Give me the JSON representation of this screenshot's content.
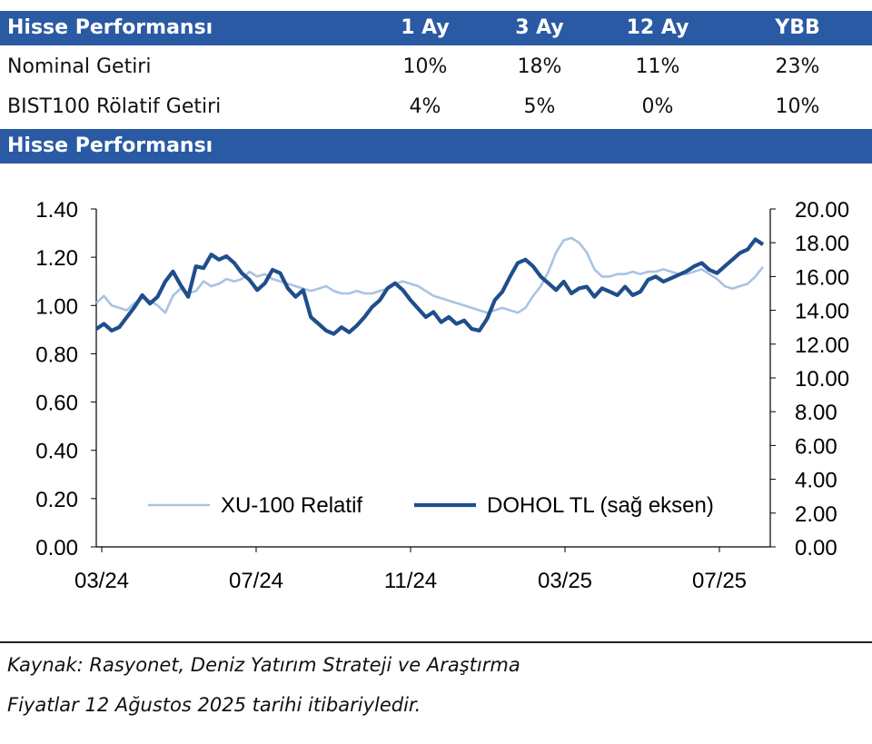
{
  "table": {
    "title": "Hisse Performansı",
    "columns": [
      "1 Ay",
      "3 Ay",
      "12 Ay",
      "YBB"
    ],
    "rows": [
      {
        "label": "Nominal Getiri",
        "values": [
          "10%",
          "18%",
          "11%",
          "23%"
        ]
      },
      {
        "label": "BIST100 Rölatif Getiri",
        "values": [
          "4%",
          "5%",
          "0%",
          "10%"
        ]
      }
    ]
  },
  "chart_section_title": "Hisse Performansı",
  "chart_data": {
    "type": "line",
    "x_ticks": [
      "03/24",
      "07/24",
      "11/24",
      "03/25",
      "07/25"
    ],
    "y_left": {
      "range": [
        0,
        1.4
      ],
      "ticks": [
        "0.00",
        "0.20",
        "0.40",
        "0.60",
        "0.80",
        "1.00",
        "1.20",
        "1.40"
      ]
    },
    "y_right": {
      "range": [
        0,
        20
      ],
      "ticks": [
        "0.00",
        "2.00",
        "4.00",
        "6.00",
        "8.00",
        "10.00",
        "12.00",
        "14.00",
        "16.00",
        "18.00",
        "20.00"
      ]
    },
    "legend_position": "bottom",
    "x_range_months": [
      0,
      17.4
    ],
    "series": [
      {
        "name": "XU-100 Relatif",
        "axis": "left",
        "color": "#a9c3e2",
        "x": [
          0,
          0.2,
          0.4,
          0.6,
          0.8,
          1.0,
          1.2,
          1.4,
          1.6,
          1.8,
          2.0,
          2.2,
          2.4,
          2.6,
          2.8,
          3.0,
          3.2,
          3.4,
          3.6,
          3.8,
          4.0,
          4.2,
          4.4,
          4.6,
          4.8,
          5.0,
          5.2,
          5.4,
          5.6,
          5.8,
          6.0,
          6.2,
          6.4,
          6.6,
          6.8,
          7.0,
          7.2,
          7.4,
          7.6,
          7.8,
          8.0,
          8.2,
          8.4,
          8.6,
          8.8,
          9.0,
          9.2,
          9.4,
          9.6,
          9.8,
          10.0,
          10.2,
          10.4,
          10.6,
          10.8,
          11.0,
          11.2,
          11.4,
          11.6,
          11.8,
          12.0,
          12.2,
          12.4,
          12.6,
          12.8,
          13.0,
          13.2,
          13.4,
          13.6,
          13.8,
          14.0,
          14.2,
          14.4,
          14.6,
          14.8,
          15.0,
          15.2,
          15.4,
          15.6,
          15.8,
          16.0,
          16.2,
          16.4,
          16.6,
          16.8,
          17.0,
          17.2,
          17.4
        ],
        "values": [
          1.01,
          1.04,
          1.0,
          0.99,
          0.98,
          1.01,
          1.03,
          1.02,
          1.0,
          0.97,
          1.04,
          1.07,
          1.05,
          1.06,
          1.1,
          1.08,
          1.09,
          1.11,
          1.1,
          1.11,
          1.14,
          1.12,
          1.13,
          1.11,
          1.1,
          1.09,
          1.08,
          1.07,
          1.06,
          1.07,
          1.08,
          1.06,
          1.05,
          1.05,
          1.06,
          1.05,
          1.05,
          1.06,
          1.07,
          1.09,
          1.1,
          1.09,
          1.08,
          1.06,
          1.04,
          1.03,
          1.02,
          1.01,
          1.0,
          0.99,
          0.98,
          0.97,
          0.98,
          0.99,
          0.98,
          0.97,
          0.99,
          1.04,
          1.08,
          1.14,
          1.22,
          1.27,
          1.28,
          1.26,
          1.22,
          1.15,
          1.12,
          1.12,
          1.13,
          1.13,
          1.14,
          1.13,
          1.14,
          1.14,
          1.15,
          1.14,
          1.13,
          1.13,
          1.14,
          1.15,
          1.13,
          1.11,
          1.08,
          1.07,
          1.08,
          1.09,
          1.12,
          1.16
        ]
      },
      {
        "name": "DOHOL TL (sağ eksen)",
        "axis": "right",
        "color": "#1f4e8c",
        "x": [
          0,
          0.2,
          0.4,
          0.6,
          0.8,
          1.0,
          1.2,
          1.4,
          1.6,
          1.8,
          2.0,
          2.2,
          2.4,
          2.6,
          2.8,
          3.0,
          3.2,
          3.4,
          3.6,
          3.8,
          4.0,
          4.2,
          4.4,
          4.6,
          4.8,
          5.0,
          5.2,
          5.4,
          5.6,
          5.8,
          6.0,
          6.2,
          6.4,
          6.6,
          6.8,
          7.0,
          7.2,
          7.4,
          7.6,
          7.8,
          8.0,
          8.2,
          8.4,
          8.6,
          8.8,
          9.0,
          9.2,
          9.4,
          9.6,
          9.8,
          10.0,
          10.2,
          10.4,
          10.6,
          10.8,
          11.0,
          11.2,
          11.4,
          11.6,
          11.8,
          12.0,
          12.2,
          12.4,
          12.6,
          12.8,
          13.0,
          13.2,
          13.4,
          13.6,
          13.8,
          14.0,
          14.2,
          14.4,
          14.6,
          14.8,
          15.0,
          15.2,
          15.4,
          15.6,
          15.8,
          16.0,
          16.2,
          16.4,
          16.6,
          16.8,
          17.0,
          17.2,
          17.4
        ],
        "values": [
          12.9,
          13.2,
          12.8,
          13.0,
          13.6,
          14.2,
          14.9,
          14.4,
          14.8,
          15.7,
          16.3,
          15.5,
          14.8,
          16.6,
          16.5,
          17.3,
          17.0,
          17.2,
          16.8,
          16.2,
          15.8,
          15.2,
          15.6,
          16.4,
          16.2,
          15.3,
          14.8,
          15.2,
          13.6,
          13.2,
          12.8,
          12.6,
          13.0,
          12.7,
          13.1,
          13.6,
          14.2,
          14.6,
          15.3,
          15.6,
          15.2,
          14.6,
          14.1,
          13.6,
          13.9,
          13.3,
          13.6,
          13.2,
          13.4,
          12.9,
          12.8,
          13.5,
          14.6,
          15.1,
          16.0,
          16.8,
          17.0,
          16.6,
          16.0,
          15.6,
          15.2,
          15.7,
          15.0,
          15.3,
          15.4,
          14.8,
          15.3,
          15.1,
          14.9,
          15.4,
          14.9,
          15.1,
          15.8,
          16.0,
          15.7,
          15.9,
          16.1,
          16.3,
          16.6,
          16.8,
          16.4,
          16.2,
          16.6,
          17.0,
          17.4,
          17.6,
          18.2,
          17.9
        ]
      }
    ]
  },
  "footer": {
    "source": "Kaynak: Rasyonet, Deniz Yatırım Strateji ve Araştırma",
    "date_note": "Fiyatlar 12 Ağustos 2025 tarihi itibariyledir."
  }
}
